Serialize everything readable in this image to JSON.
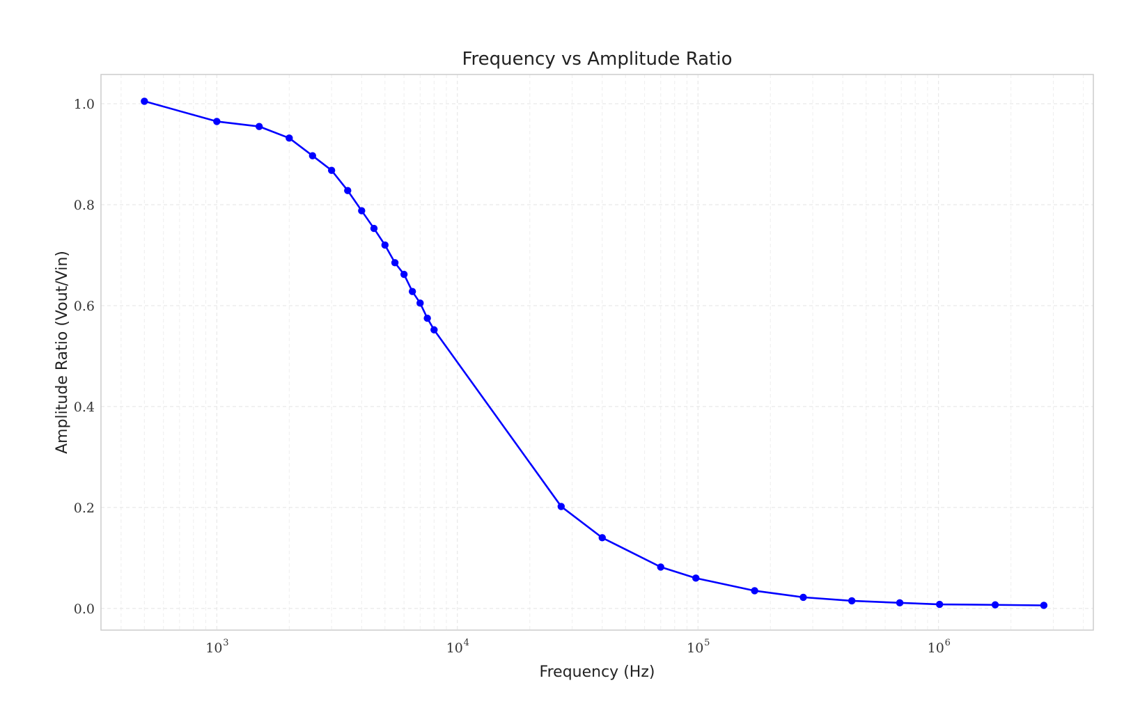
{
  "chart_data": {
    "type": "line",
    "title": "Frequency vs Amplitude Ratio",
    "xlabel": "Frequency (Hz)",
    "ylabel": "Amplitude Ratio (Vout/Vin)",
    "xscale": "log",
    "xlim": [
      330,
      4400000
    ],
    "ylim": [
      -0.043,
      1.058
    ],
    "grid": true,
    "line_color": "#0000ff",
    "marker": "circle",
    "x_ticks": [
      {
        "base": "10",
        "exp": "3",
        "value": 1000
      },
      {
        "base": "10",
        "exp": "4",
        "value": 10000
      },
      {
        "base": "10",
        "exp": "5",
        "value": 100000
      },
      {
        "base": "10",
        "exp": "6",
        "value": 1000000
      }
    ],
    "y_ticks": [
      {
        "label": "0.0",
        "value": 0.0
      },
      {
        "label": "0.2",
        "value": 0.2
      },
      {
        "label": "0.4",
        "value": 0.4
      },
      {
        "label": "0.6",
        "value": 0.6
      },
      {
        "label": "0.8",
        "value": 0.8
      },
      {
        "label": "1.0",
        "value": 1.0
      }
    ],
    "series": [
      {
        "x": [
          500,
          1000,
          1500,
          2000,
          2500,
          3000,
          3500,
          4000,
          4500,
          5000,
          5500,
          6000,
          6500,
          7000,
          7500,
          8000,
          27000,
          40000,
          70000,
          98000,
          172000,
          274000,
          436000,
          690000,
          1010000,
          1720000,
          2740000
        ],
        "y": [
          1.005,
          0.965,
          0.955,
          0.932,
          0.897,
          0.868,
          0.828,
          0.788,
          0.753,
          0.72,
          0.685,
          0.662,
          0.628,
          0.605,
          0.575,
          0.552,
          0.202,
          0.14,
          0.082,
          0.06,
          0.035,
          0.022,
          0.015,
          0.011,
          0.008,
          0.007,
          0.006
        ]
      }
    ]
  }
}
